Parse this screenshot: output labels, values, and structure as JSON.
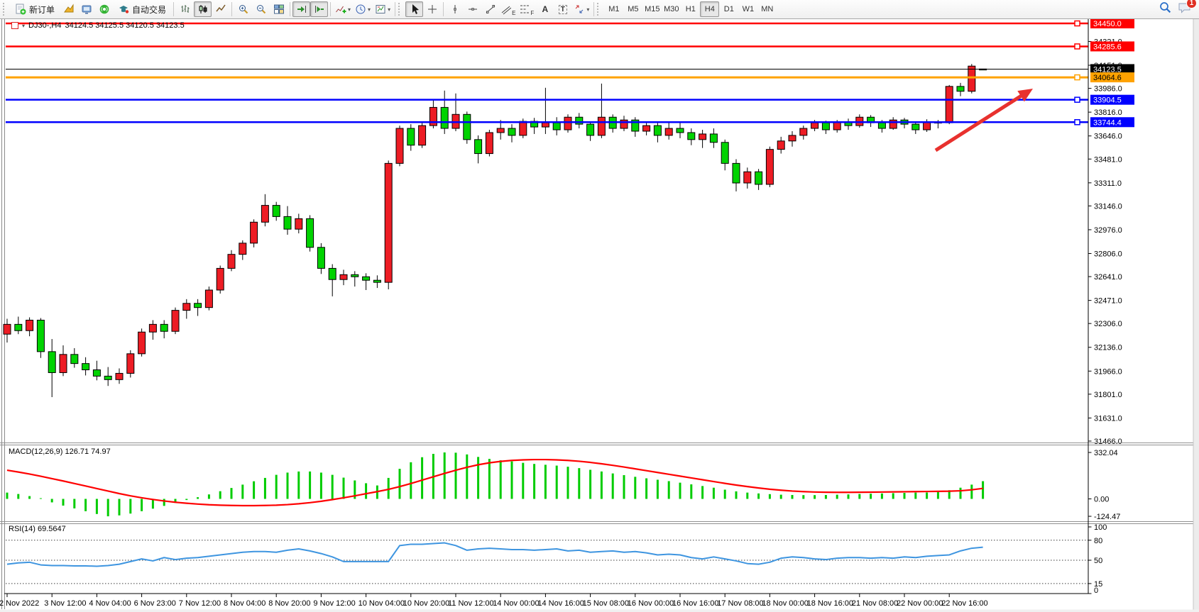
{
  "toolbar": {
    "new_order": "新订单",
    "auto_trading": "自动交易",
    "timeframes": [
      "M1",
      "M5",
      "M15",
      "M30",
      "H1",
      "H4",
      "D1",
      "W1",
      "MN"
    ],
    "active_timeframe": "H4",
    "tool_letters": {
      "text": "A",
      "textbox": "T",
      "channel": "E",
      "fibo": "F"
    },
    "notification_badge": "1"
  },
  "chart_data": {
    "type": "candlestick",
    "title_symbol": "DJ30-,H4",
    "title_ohlc": "34124.5 34125.5 34120.5 34123.5",
    "bull_color": "#ed1c24",
    "bear_color": "#00d300",
    "ylim": [
      31466,
      34450
    ],
    "x_label_step": 4,
    "x_labels": [
      "2 Nov 2022",
      "3 Nov 12:00",
      "4 Nov 04:00",
      "6 Nov 23:00",
      "7 Nov 12:00",
      "8 Nov 04:00",
      "8 Nov 20:00",
      "9 Nov 12:00",
      "10 Nov 04:00",
      "10 Nov 20:00",
      "11 Nov 12:00",
      "14 Nov 00:00",
      "14 Nov 16:00",
      "15 Nov 08:00",
      "16 Nov 00:00",
      "16 Nov 16:00",
      "17 Nov 08:00",
      "18 Nov 00:00",
      "18 Nov 16:00",
      "21 Nov 08:00",
      "22 Nov 00:00",
      "22 Nov 16:00"
    ],
    "price_axis_ticks": [
      34321,
      34151,
      33986,
      33816,
      33646,
      33481,
      33311,
      33146,
      32976,
      32806,
      32641,
      32471,
      32306,
      32136,
      31966,
      31801,
      31631,
      31466
    ],
    "levels": [
      {
        "price": 34450.0,
        "label": "34450.0",
        "color": "#ff0000",
        "text_color": "#ffffff",
        "width": 2.5
      },
      {
        "price": 34285.6,
        "label": "34285.6",
        "color": "#ff0000",
        "text_color": "#ffffff",
        "width": 2.5
      },
      {
        "price": 34123.5,
        "label": "34123.5",
        "color": "#000000",
        "text_color": "#ffffff",
        "width": 1,
        "bid": true
      },
      {
        "price": 34064.6,
        "label": "34064.6",
        "color": "#ffa200",
        "text_color": "#000000",
        "width": 3
      },
      {
        "price": 33904.5,
        "label": "33904.5",
        "color": "#0000ff",
        "text_color": "#ffffff",
        "width": 2.5
      },
      {
        "price": 33744.4,
        "label": "33744.4",
        "color": "#0000ff",
        "text_color": "#ffffff",
        "width": 2.5
      }
    ],
    "candles": [
      [
        32230,
        32340,
        32170,
        32300
      ],
      [
        32300,
        32355,
        32230,
        32255
      ],
      [
        32255,
        32350,
        32215,
        32330
      ],
      [
        32330,
        32345,
        32060,
        32105
      ],
      [
        32105,
        32195,
        31780,
        31955
      ],
      [
        31955,
        32150,
        31930,
        32085
      ],
      [
        32085,
        32130,
        31990,
        32020
      ],
      [
        32020,
        32065,
        31935,
        31975
      ],
      [
        31975,
        32040,
        31900,
        31930
      ],
      [
        31930,
        31995,
        31860,
        31905
      ],
      [
        31905,
        31985,
        31875,
        31950
      ],
      [
        31950,
        32115,
        31920,
        32090
      ],
      [
        32090,
        32270,
        32070,
        32245
      ],
      [
        32245,
        32330,
        32190,
        32300
      ],
      [
        32300,
        32330,
        32200,
        32250
      ],
      [
        32250,
        32420,
        32230,
        32400
      ],
      [
        32400,
        32480,
        32340,
        32450
      ],
      [
        32450,
        32480,
        32360,
        32420
      ],
      [
        32420,
        32570,
        32400,
        32545
      ],
      [
        32545,
        32720,
        32520,
        32700
      ],
      [
        32700,
        32830,
        32680,
        32800
      ],
      [
        32800,
        32900,
        32760,
        32880
      ],
      [
        32880,
        33050,
        32850,
        33030
      ],
      [
        33030,
        33230,
        33000,
        33150
      ],
      [
        33150,
        33175,
        33040,
        33070
      ],
      [
        33070,
        33145,
        32940,
        32980
      ],
      [
        32980,
        33090,
        32950,
        33055
      ],
      [
        33055,
        33080,
        32820,
        32850
      ],
      [
        32850,
        32880,
        32660,
        32700
      ],
      [
        32700,
        32730,
        32500,
        32620
      ],
      [
        32620,
        32690,
        32580,
        32655
      ],
      [
        32655,
        32680,
        32570,
        32640
      ],
      [
        32640,
        32665,
        32545,
        32615
      ],
      [
        32615,
        32650,
        32560,
        32600
      ],
      [
        32600,
        33470,
        32550,
        33450
      ],
      [
        33450,
        33720,
        33430,
        33700
      ],
      [
        33700,
        33730,
        33540,
        33580
      ],
      [
        33580,
        33740,
        33560,
        33720
      ],
      [
        33720,
        33905,
        33700,
        33850
      ],
      [
        33850,
        33970,
        33660,
        33700
      ],
      [
        33700,
        33950,
        33680,
        33800
      ],
      [
        33800,
        33820,
        33590,
        33620
      ],
      [
        33620,
        33650,
        33450,
        33520
      ],
      [
        33520,
        33690,
        33500,
        33670
      ],
      [
        33670,
        33760,
        33620,
        33700
      ],
      [
        33700,
        33730,
        33600,
        33650
      ],
      [
        33650,
        33770,
        33630,
        33750
      ],
      [
        33750,
        33775,
        33660,
        33710
      ],
      [
        33710,
        33990,
        33660,
        33740
      ],
      [
        33740,
        33780,
        33650,
        33690
      ],
      [
        33690,
        33800,
        33670,
        33780
      ],
      [
        33780,
        33810,
        33700,
        33730
      ],
      [
        33730,
        33750,
        33610,
        33650
      ],
      [
        33650,
        34020,
        33630,
        33780
      ],
      [
        33780,
        33800,
        33670,
        33700
      ],
      [
        33700,
        33790,
        33680,
        33760
      ],
      [
        33760,
        33780,
        33640,
        33680
      ],
      [
        33680,
        33750,
        33650,
        33720
      ],
      [
        33720,
        33740,
        33600,
        33650
      ],
      [
        33650,
        33745,
        33620,
        33700
      ],
      [
        33700,
        33740,
        33630,
        33670
      ],
      [
        33670,
        33700,
        33580,
        33620
      ],
      [
        33620,
        33690,
        33560,
        33660
      ],
      [
        33660,
        33700,
        33560,
        33600
      ],
      [
        33600,
        33620,
        33400,
        33450
      ],
      [
        33450,
        33480,
        33250,
        33310
      ],
      [
        33310,
        33420,
        33270,
        33390
      ],
      [
        33390,
        33410,
        33260,
        33300
      ],
      [
        33300,
        33570,
        33280,
        33550
      ],
      [
        33550,
        33640,
        33520,
        33610
      ],
      [
        33610,
        33680,
        33570,
        33650
      ],
      [
        33650,
        33720,
        33620,
        33700
      ],
      [
        33700,
        33760,
        33680,
        33740
      ],
      [
        33740,
        33755,
        33660,
        33690
      ],
      [
        33690,
        33760,
        33670,
        33745
      ],
      [
        33745,
        33770,
        33690,
        33720
      ],
      [
        33720,
        33800,
        33705,
        33780
      ],
      [
        33780,
        33795,
        33710,
        33740
      ],
      [
        33740,
        33760,
        33670,
        33700
      ],
      [
        33700,
        33780,
        33690,
        33760
      ],
      [
        33760,
        33775,
        33700,
        33730
      ],
      [
        33730,
        33745,
        33660,
        33690
      ],
      [
        33690,
        33765,
        33675,
        33745
      ],
      [
        33745,
        33760,
        33700,
        33740
      ],
      [
        33740,
        34010,
        33730,
        34000
      ],
      [
        34000,
        34025,
        33930,
        33965
      ],
      [
        33965,
        34160,
        33950,
        34145
      ],
      [
        34124.5,
        34125.5,
        34120.5,
        34123.5
      ]
    ],
    "indicators": {
      "macd": {
        "label": "MACD(12,26,9) 126.71 74.97",
        "hist_color": "#00cc00",
        "signal_color": "#ff0000",
        "scale": [
          {
            "label": "332.04",
            "value": 332.04
          },
          {
            "label": "0.00",
            "value": 0
          },
          {
            "label": "-124.47",
            "value": -124.47
          }
        ],
        "histogram": [
          45,
          35,
          20,
          5,
          -25,
          -48,
          -68,
          -88,
          -108,
          -124.47,
          -118,
          -105,
          -88,
          -70,
          -50,
          -28,
          -8,
          12,
          32,
          55,
          78,
          102,
          126,
          150,
          172,
          188,
          196,
          196,
          188,
          172,
          152,
          132,
          112,
          96,
          150,
          215,
          262,
          298,
          322,
          332.04,
          330,
          318,
          300,
          286,
          276,
          268,
          258,
          250,
          244,
          238,
          230,
          220,
          208,
          196,
          182,
          170,
          158,
          147,
          137,
          127,
          116,
          104,
          92,
          80,
          66,
          54,
          45,
          39,
          34,
          30,
          28,
          27,
          27,
          28,
          30,
          32,
          35,
          37,
          39,
          41,
          43,
          45,
          46,
          48,
          62,
          80,
          102,
          126.71
        ],
        "signal": [
          205,
          192,
          178,
          162,
          145,
          128,
          110,
          92,
          74,
          56,
          38,
          22,
          8,
          -4,
          -15,
          -24,
          -31,
          -37,
          -42,
          -45,
          -47,
          -48,
          -48,
          -47,
          -45,
          -41,
          -35,
          -27,
          -17,
          -5,
          8,
          22,
          37,
          52,
          68,
          88,
          110,
          134,
          158,
          182,
          205,
          226,
          244,
          258,
          268,
          275,
          279,
          281,
          281,
          279,
          275,
          269,
          261,
          251,
          240,
          228,
          215,
          202,
          189,
          176,
          163,
          150,
          137,
          124,
          111,
          99,
          88,
          78,
          69,
          62,
          56,
          52,
          49,
          47.5,
          47,
          47,
          47.5,
          48,
          49,
          50,
          51,
          52,
          53,
          54,
          55,
          58,
          65,
          74.97
        ]
      },
      "rsi": {
        "label": "RSI(14) 69.5647",
        "color": "#3e95e0",
        "dashed_levels": [
          80,
          50,
          15
        ],
        "scale": [
          {
            "label": "100",
            "value": 100
          },
          {
            "label": "80",
            "value": 80
          },
          {
            "label": "50",
            "value": 50
          },
          {
            "label": "15",
            "value": 15
          },
          {
            "label": "0",
            "value": 0
          }
        ],
        "values": [
          44,
          46,
          47,
          43,
          42,
          42,
          41.5,
          41.5,
          41,
          42,
          44,
          48,
          52,
          49,
          54,
          51,
          53,
          54,
          56,
          58,
          60,
          62,
          63,
          63,
          62,
          65,
          67,
          64,
          60,
          55,
          48,
          48,
          48,
          48,
          48,
          72,
          74,
          74,
          75,
          76,
          72,
          65,
          67,
          68,
          67,
          66,
          66,
          65,
          66,
          67,
          64,
          65,
          62,
          63,
          64,
          62,
          63,
          61,
          58,
          59,
          58,
          54,
          52,
          55,
          52,
          49,
          45,
          44,
          47,
          53,
          55,
          54,
          52,
          51,
          53,
          54,
          54,
          53,
          54,
          53,
          55,
          54,
          56,
          57,
          58,
          64,
          68,
          69.56
        ]
      }
    },
    "annotation_arrow": {
      "from": [
        1318,
        212
      ],
      "to": [
        1455,
        125
      ],
      "color": "#e8312e"
    }
  }
}
